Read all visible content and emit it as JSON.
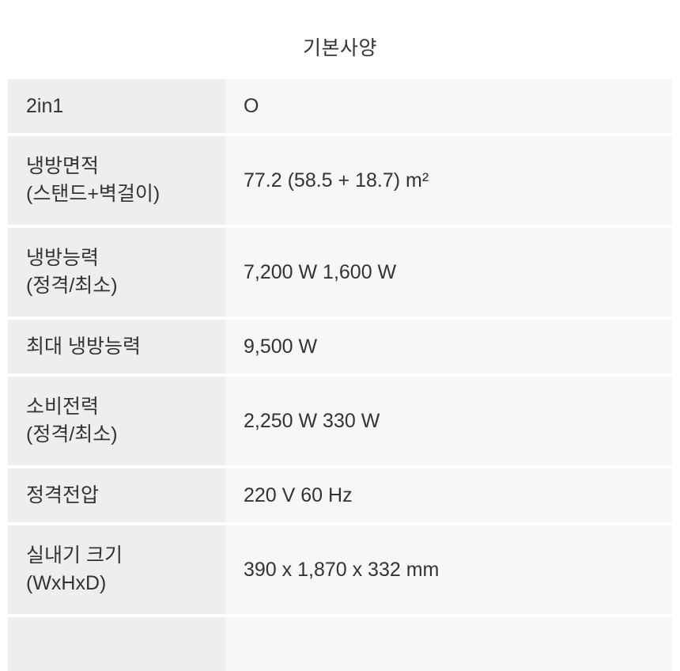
{
  "page": {
    "background_color": "#ffffff",
    "text_color": "#333333"
  },
  "header": {
    "title": "기본사양"
  },
  "table": {
    "label_column_bg": "#eeeeee",
    "value_column_bg": "#f7f7f7",
    "rows": [
      {
        "label": "2in1",
        "value": "O"
      },
      {
        "label": "냉방면적\n(스탠드+벽걸이)",
        "value": "77.2 (58.5 + 18.7) m²"
      },
      {
        "label": "냉방능력\n(정격/최소)",
        "value": "7,200 W 1,600 W"
      },
      {
        "label": "최대 냉방능력",
        "value": "9,500 W"
      },
      {
        "label": "소비전력\n(정격/최소)",
        "value": "2,250 W 330 W"
      },
      {
        "label": "정격전압",
        "value": "220 V 60 Hz"
      },
      {
        "label": "실내기 크기\n(WxHxD)",
        "value": "390 x 1,870 x 332 mm"
      },
      {
        "label": "",
        "value": ""
      }
    ]
  }
}
